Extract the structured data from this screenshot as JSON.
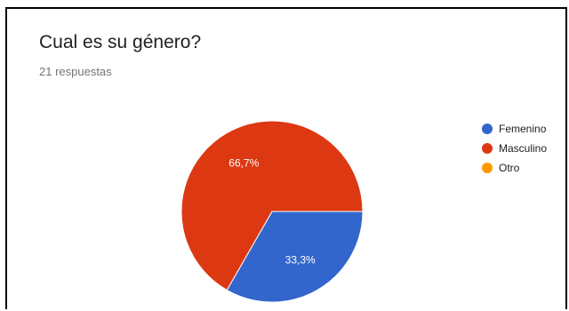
{
  "card": {
    "title": "Cual es su género?",
    "subtitle": "21 respuestas"
  },
  "chart_data": {
    "type": "pie",
    "title": "Cual es su género?",
    "subtitle": "21 respuestas",
    "legend": "right",
    "slices": [
      {
        "label": "Femenino",
        "value": 33.3,
        "display": "33,3%",
        "color": "#3366cc"
      },
      {
        "label": "Masculino",
        "value": 66.7,
        "display": "66,7%",
        "color": "#dc3912"
      },
      {
        "label": "Otro",
        "value": 0,
        "display": "",
        "color": "#ff9900"
      }
    ]
  }
}
